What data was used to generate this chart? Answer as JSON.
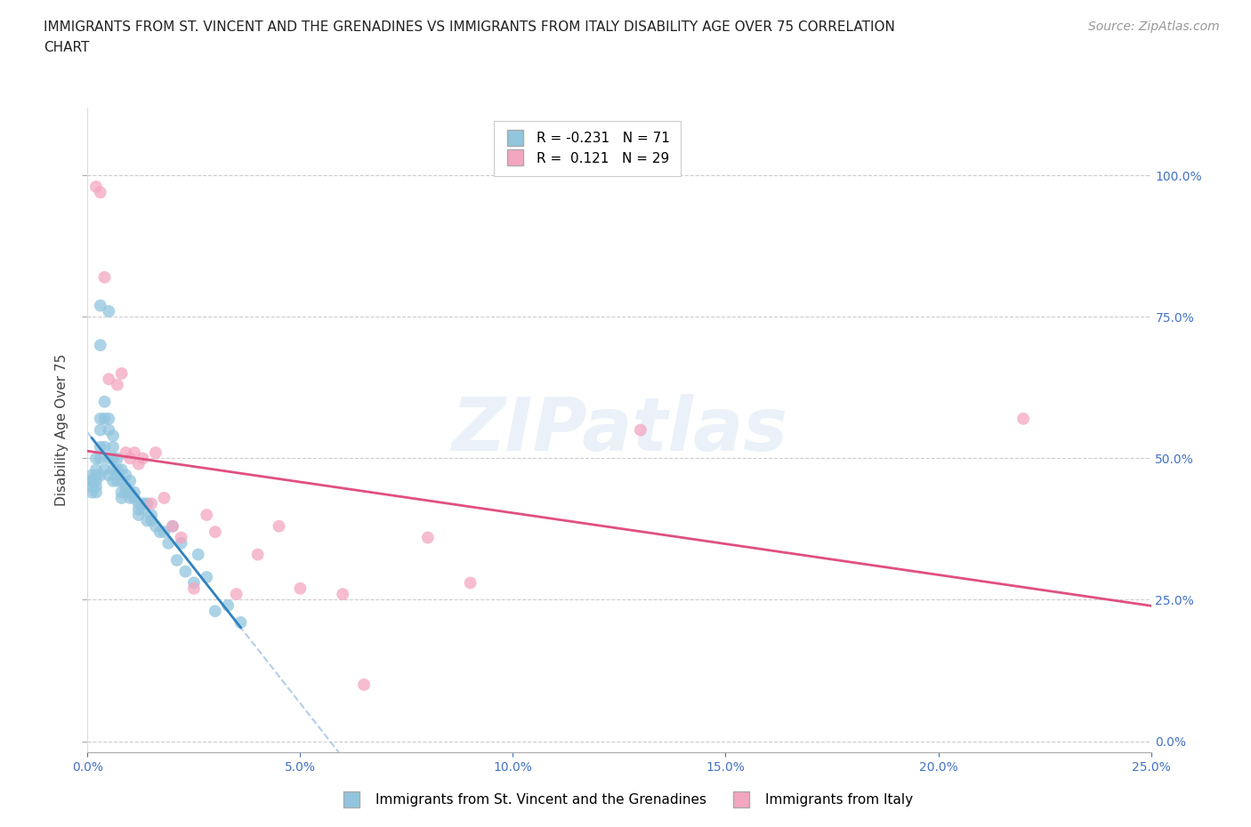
{
  "title": "IMMIGRANTS FROM ST. VINCENT AND THE GRENADINES VS IMMIGRANTS FROM ITALY DISABILITY AGE OVER 75 CORRELATION\nCHART",
  "source": "Source: ZipAtlas.com",
  "ylabel": "Disability Age Over 75",
  "xlim": [
    0.0,
    0.25
  ],
  "ylim": [
    -0.02,
    1.12
  ],
  "yticks": [
    0.0,
    0.25,
    0.5,
    0.75,
    1.0
  ],
  "xticks": [
    0.0,
    0.05,
    0.1,
    0.15,
    0.2,
    0.25
  ],
  "blue_color": "#92c5de",
  "pink_color": "#f4a6c0",
  "blue_line_color": "#3182bd",
  "pink_line_color": "#e05080",
  "dashed_color": "#aec8e8",
  "legend_blue_R": "-0.231",
  "legend_blue_N": "71",
  "legend_pink_R": "0.121",
  "legend_pink_N": "29",
  "blue_scatter_x": [
    0.001,
    0.001,
    0.001,
    0.001,
    0.001,
    0.002,
    0.002,
    0.002,
    0.002,
    0.002,
    0.002,
    0.003,
    0.003,
    0.003,
    0.003,
    0.003,
    0.003,
    0.003,
    0.004,
    0.004,
    0.004,
    0.004,
    0.005,
    0.005,
    0.005,
    0.005,
    0.005,
    0.006,
    0.006,
    0.006,
    0.006,
    0.006,
    0.007,
    0.007,
    0.007,
    0.007,
    0.008,
    0.008,
    0.008,
    0.008,
    0.009,
    0.009,
    0.009,
    0.01,
    0.01,
    0.01,
    0.011,
    0.011,
    0.012,
    0.012,
    0.012,
    0.013,
    0.013,
    0.014,
    0.014,
    0.015,
    0.015,
    0.016,
    0.017,
    0.018,
    0.019,
    0.02,
    0.021,
    0.022,
    0.023,
    0.025,
    0.026,
    0.028,
    0.03,
    0.033,
    0.036
  ],
  "blue_scatter_y": [
    0.47,
    0.46,
    0.46,
    0.45,
    0.44,
    0.5,
    0.48,
    0.47,
    0.46,
    0.45,
    0.44,
    0.77,
    0.7,
    0.57,
    0.55,
    0.52,
    0.5,
    0.47,
    0.6,
    0.57,
    0.52,
    0.48,
    0.76,
    0.57,
    0.55,
    0.5,
    0.47,
    0.54,
    0.52,
    0.5,
    0.48,
    0.46,
    0.5,
    0.48,
    0.47,
    0.46,
    0.48,
    0.46,
    0.44,
    0.43,
    0.47,
    0.45,
    0.44,
    0.46,
    0.44,
    0.43,
    0.44,
    0.43,
    0.42,
    0.41,
    0.4,
    0.42,
    0.41,
    0.42,
    0.39,
    0.4,
    0.39,
    0.38,
    0.37,
    0.37,
    0.35,
    0.38,
    0.32,
    0.35,
    0.3,
    0.28,
    0.33,
    0.29,
    0.23,
    0.24,
    0.21
  ],
  "pink_scatter_x": [
    0.002,
    0.003,
    0.004,
    0.005,
    0.007,
    0.008,
    0.009,
    0.01,
    0.011,
    0.012,
    0.013,
    0.015,
    0.016,
    0.018,
    0.02,
    0.022,
    0.025,
    0.028,
    0.03,
    0.035,
    0.04,
    0.045,
    0.05,
    0.06,
    0.065,
    0.08,
    0.09,
    0.13,
    0.22
  ],
  "pink_scatter_y": [
    0.98,
    0.97,
    0.82,
    0.64,
    0.63,
    0.65,
    0.51,
    0.5,
    0.51,
    0.49,
    0.5,
    0.42,
    0.51,
    0.43,
    0.38,
    0.36,
    0.27,
    0.4,
    0.37,
    0.26,
    0.33,
    0.38,
    0.27,
    0.26,
    0.1,
    0.36,
    0.28,
    0.55,
    0.57
  ],
  "background_color": "#ffffff",
  "watermark_text": "ZIPatlas",
  "title_fontsize": 11,
  "axis_label_fontsize": 11,
  "tick_fontsize": 10,
  "legend_fontsize": 11,
  "source_fontsize": 10,
  "right_label_color": "#4472c4",
  "left_tick_color": "#aaaaaa",
  "x_tick_color": "#4472c4",
  "grid_color": "#cccccc"
}
